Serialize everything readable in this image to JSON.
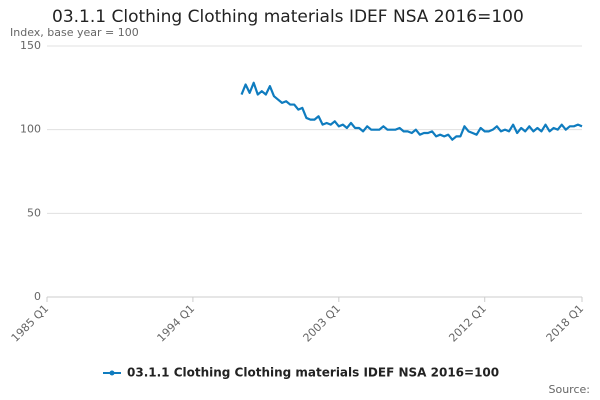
{
  "chart_data": {
    "type": "line",
    "title": "03.1.1 Clothing Clothing materials IDEF NSA 2016=100",
    "subtitle": "Index, base year = 100",
    "source": "Source:",
    "categories": [
      "1985 Q1",
      null,
      null,
      null,
      null,
      null,
      null,
      null,
      null,
      null,
      null,
      null,
      null,
      null,
      null,
      null,
      null,
      null,
      null,
      null,
      null,
      null,
      null,
      null,
      null,
      null,
      null,
      null,
      null,
      null,
      null,
      null,
      null,
      null,
      null,
      null,
      "1994 Q1",
      null,
      null,
      null,
      null,
      null,
      null,
      null,
      null,
      null,
      null,
      null,
      null,
      null,
      null,
      null,
      null,
      null,
      null,
      null,
      null,
      null,
      null,
      null,
      null,
      null,
      null,
      null,
      null,
      null,
      null,
      null,
      null,
      null,
      null,
      null,
      "2003 Q1",
      null,
      null,
      null,
      null,
      null,
      null,
      null,
      null,
      null,
      null,
      null,
      null,
      null,
      null,
      null,
      null,
      null,
      null,
      null,
      null,
      null,
      null,
      null,
      null,
      null,
      null,
      null,
      null,
      null,
      null,
      null,
      null,
      null,
      null,
      null,
      "2012 Q1",
      null,
      null,
      null,
      null,
      null,
      null,
      null,
      null,
      null,
      null,
      null,
      null,
      null,
      null,
      null,
      null,
      null,
      null,
      null,
      null,
      null,
      null,
      null,
      "2018 Q1"
    ],
    "series": [
      {
        "name": "03.1.1 Clothing Clothing materials IDEF NSA 2016=100",
        "color": "#0f7cbf",
        "values": [
          null,
          null,
          null,
          null,
          null,
          null,
          null,
          null,
          null,
          null,
          null,
          null,
          null,
          null,
          null,
          null,
          null,
          null,
          null,
          null,
          null,
          null,
          null,
          null,
          null,
          null,
          null,
          null,
          null,
          null,
          null,
          null,
          null,
          null,
          null,
          null,
          null,
          null,
          null,
          null,
          null,
          null,
          null,
          null,
          null,
          null,
          null,
          null,
          121,
          127,
          122,
          128,
          121,
          123,
          121,
          126,
          120,
          118,
          116,
          117,
          115,
          115,
          112,
          113,
          107,
          106,
          106,
          108,
          103,
          104,
          103,
          105,
          102,
          103,
          101,
          104,
          101,
          101,
          99,
          102,
          100,
          100,
          100,
          102,
          100,
          100,
          100,
          101,
          99,
          99,
          98,
          100,
          97,
          98,
          98,
          99,
          96,
          97,
          96,
          97,
          94,
          96,
          96,
          102,
          99,
          98,
          97,
          101,
          99,
          99,
          100,
          102,
          99,
          100,
          99,
          103,
          98,
          101,
          99,
          102,
          99,
          101,
          99,
          103,
          99,
          101,
          100,
          103,
          100,
          102,
          102,
          103,
          102
        ]
      }
    ],
    "ylim": [
      0,
      150
    ],
    "yticks": [
      0,
      50,
      100,
      150
    ],
    "grid": true
  }
}
